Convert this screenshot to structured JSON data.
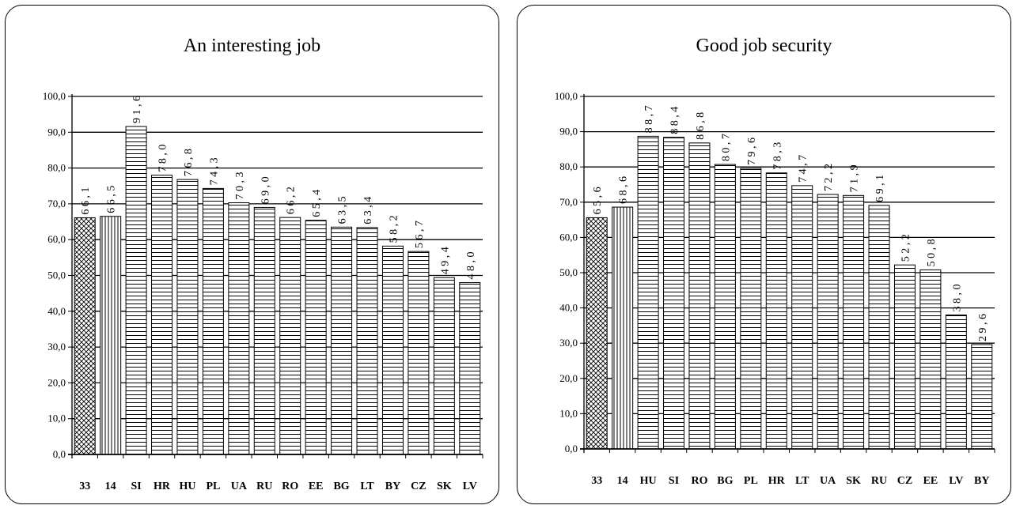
{
  "chart_data": [
    {
      "type": "bar",
      "title": "An interesting job",
      "categories": [
        "33",
        "14",
        "SI",
        "HR",
        "HU",
        "PL",
        "UA",
        "RU",
        "RO",
        "EE",
        "BG",
        "LT",
        "BY",
        "CZ",
        "SK",
        "LV"
      ],
      "values": [
        66.1,
        66.5,
        91.6,
        78.0,
        76.8,
        74.3,
        70.3,
        69.0,
        66.2,
        65.4,
        63.5,
        63.4,
        58.2,
        56.7,
        49.4,
        48.0
      ],
      "data_labels": [
        "6 6 , 1",
        "6 6 , 5",
        "9 1 , 6",
        "7 8 , 0",
        "7 6 , 8",
        "7 4 , 3",
        "7 0 , 3",
        "6 9 , 0",
        "6 6 , 2",
        "6 5 , 4",
        "6 3 , 5",
        "6 3 , 4",
        "5 8 , 2",
        "5 6 , 7",
        "4 9 , 4",
        "4 8 , 0"
      ],
      "patterns": [
        "crosshatch",
        "vertical",
        "horizontal",
        "horizontal",
        "horizontal",
        "horizontal",
        "horizontal",
        "horizontal",
        "horizontal",
        "horizontal",
        "horizontal",
        "horizontal",
        "horizontal",
        "horizontal",
        "horizontal",
        "horizontal"
      ],
      "ylim": [
        0,
        100
      ],
      "yticks": [
        "0,0",
        "10,0",
        "20,0",
        "30,0",
        "40,0",
        "50,0",
        "60,0",
        "70,0",
        "80,0",
        "90,0",
        "100,0"
      ],
      "grid": true,
      "xlabel": "",
      "ylabel": ""
    },
    {
      "type": "bar",
      "title": "Good job security",
      "categories": [
        "33",
        "14",
        "HU",
        "SI",
        "RO",
        "BG",
        "PL",
        "HR",
        "LT",
        "UA",
        "SK",
        "RU",
        "CZ",
        "EE",
        "LV",
        "BY"
      ],
      "values": [
        65.6,
        68.6,
        88.7,
        88.4,
        86.8,
        80.7,
        79.6,
        78.3,
        74.7,
        72.2,
        71.9,
        69.1,
        52.2,
        50.8,
        38.0,
        29.6
      ],
      "data_labels": [
        "6 5 , 6",
        "6 8 , 6",
        "8 8 , 7",
        "8 8 , 4",
        "8 6 , 8",
        "8 0 , 7",
        "7 9 , 6",
        "7 8 , 3",
        "7 4 , 7",
        "7 2 , 2",
        "7 1 , 9",
        "6 9 , 1",
        "5 2 , 2",
        "5 0 , 8",
        "3 8 , 0",
        "2 9 , 6"
      ],
      "patterns": [
        "crosshatch",
        "vertical",
        "horizontal",
        "horizontal",
        "horizontal",
        "horizontal",
        "horizontal",
        "horizontal",
        "horizontal",
        "horizontal",
        "horizontal",
        "horizontal",
        "horizontal",
        "horizontal",
        "horizontal",
        "horizontal"
      ],
      "ylim": [
        0,
        100
      ],
      "yticks": [
        "0,0",
        "10,0",
        "20,0",
        "30,0",
        "40,0",
        "50,0",
        "60,0",
        "70,0",
        "80,0",
        "90,0",
        "100,0"
      ],
      "grid": true,
      "xlabel": "",
      "ylabel": ""
    }
  ]
}
